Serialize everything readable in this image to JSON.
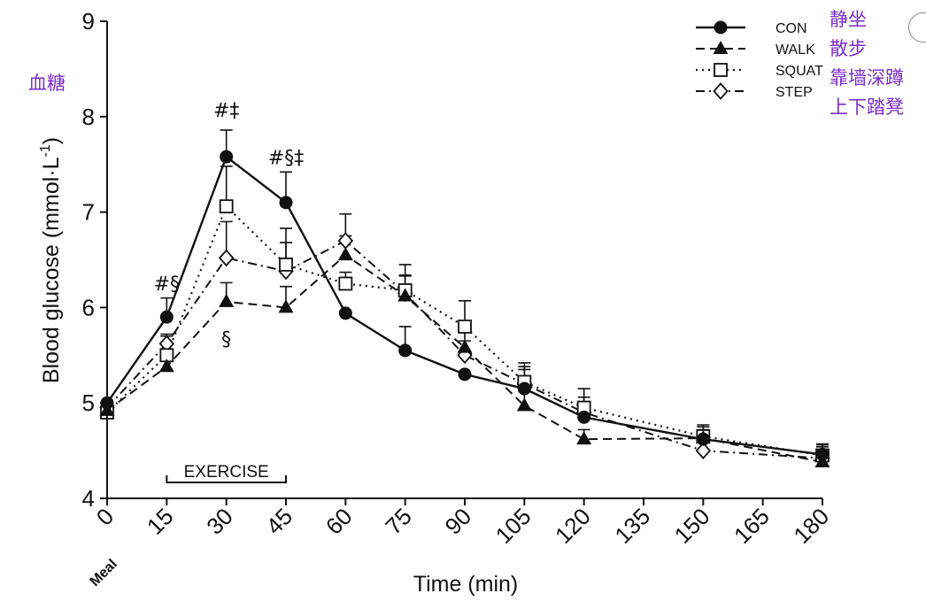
{
  "annotations_cn": {
    "y_note": "血糖",
    "con": "静坐",
    "walk": "散步",
    "squat": "靠墙深蹲",
    "step": "上下踏凳"
  },
  "colors": {
    "axis": "#111111",
    "annotation": "#7b2fc7"
  },
  "chart_data": {
    "type": "line",
    "title": "",
    "xlabel": "Time (min)",
    "ylabel": "Blood glucose (mmol·L",
    "ylabel_superscript": "-1",
    "ylabel_close": ")",
    "xlim": [
      0,
      180
    ],
    "ylim": [
      4,
      9
    ],
    "x_ticks": [
      0,
      15,
      30,
      45,
      60,
      75,
      90,
      105,
      120,
      135,
      150,
      165,
      180
    ],
    "x_tick_labels": [
      "0",
      "15",
      "30",
      "45",
      "60",
      "75",
      "90",
      "105",
      "120",
      "135",
      "150",
      "165",
      "180"
    ],
    "y_ticks": [
      4,
      5,
      6,
      7,
      8,
      9
    ],
    "y_tick_labels": [
      "4",
      "5",
      "6",
      "7",
      "8",
      "9"
    ],
    "meal_label": "Meal",
    "exercise_bar": {
      "label": "EXERCISE",
      "from": 15,
      "to": 45
    },
    "legend_position": "top-right",
    "series": [
      {
        "name": "CON",
        "marker": "filled-circle",
        "line": "solid",
        "x": [
          0,
          15,
          30,
          45,
          60,
          75,
          90,
          105,
          120,
          150,
          180
        ],
        "values": [
          5.0,
          5.9,
          7.58,
          7.1,
          5.94,
          5.55,
          5.3,
          5.15,
          4.85,
          4.62,
          4.46
        ],
        "error": [
          0,
          0.2,
          0.28,
          0.32,
          0,
          0.25,
          0,
          0.2,
          0.12,
          0.1,
          0.1
        ]
      },
      {
        "name": "WALK",
        "marker": "filled-triangle",
        "line": "dashed",
        "x": [
          0,
          15,
          30,
          45,
          60,
          75,
          90,
          105,
          120,
          150,
          180
        ],
        "values": [
          4.92,
          5.38,
          6.06,
          6.0,
          6.55,
          6.12,
          5.58,
          4.97,
          4.62,
          4.63,
          4.38
        ],
        "error": [
          0.05,
          0.1,
          0.2,
          0.22,
          0.2,
          0.22,
          0.18,
          0.15,
          0.1,
          0.12,
          0.1
        ]
      },
      {
        "name": "SQUAT",
        "marker": "open-square",
        "line": "dotted",
        "x": [
          0,
          15,
          30,
          45,
          60,
          75,
          90,
          105,
          120,
          150,
          180
        ],
        "values": [
          4.9,
          5.5,
          7.06,
          6.45,
          6.25,
          6.18,
          5.8,
          5.22,
          4.95,
          4.65,
          4.45
        ],
        "error": [
          0.05,
          0.2,
          0.42,
          0.38,
          0.12,
          0.27,
          0.27,
          0.2,
          0.2,
          0.12,
          0.12
        ]
      },
      {
        "name": "STEP",
        "marker": "open-diamond",
        "line": "dash-dot",
        "x": [
          0,
          15,
          30,
          45,
          60,
          75,
          90,
          105,
          120,
          150,
          180
        ],
        "values": [
          4.95,
          5.62,
          6.52,
          6.38,
          6.7,
          6.15,
          5.5,
          5.2,
          4.9,
          4.5,
          4.42
        ],
        "error": [
          0.05,
          0.1,
          0.38,
          0.3,
          0.28,
          0.18,
          0.15,
          0.18,
          0.16,
          0.1,
          0.12
        ]
      }
    ],
    "significance_annotations": [
      {
        "text": "#§",
        "x": 15,
        "y": 6.18
      },
      {
        "text": "#‡",
        "x": 30,
        "y": 8.0
      },
      {
        "text": "#§‡",
        "x": 45,
        "y": 7.5
      },
      {
        "text": "§",
        "x": 30,
        "y": 5.6
      }
    ]
  }
}
